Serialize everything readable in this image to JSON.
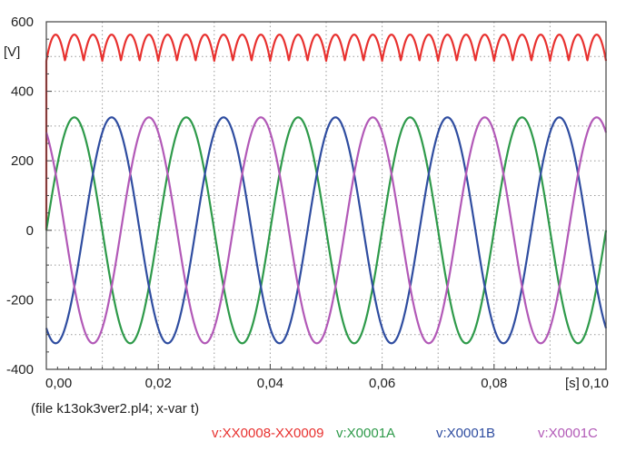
{
  "chart_data": {
    "type": "line",
    "x_unit": "[s]",
    "y_unit": "[V]",
    "xlim": [
      0,
      0.1
    ],
    "ylim": [
      -400,
      600
    ],
    "x_ticks": [
      "0,00",
      "0,02",
      "0,04",
      "0,06",
      "0,08",
      "0,10"
    ],
    "y_ticks": [
      "600",
      "400",
      "200",
      "0",
      "-200",
      "-400"
    ],
    "grid": true,
    "footnote": "(file k13ok3ver2.pl4; x-var t)",
    "legend_position": "bottom-right",
    "series": [
      {
        "name": "v:XX0008-XX0009",
        "color": "#e8312f",
        "shape": "rectified-6-pulse",
        "amplitude": 563,
        "minimum": 487,
        "frequency_hz": 50,
        "ripple_period_s": 0.00333,
        "ripple_peak_times_s": [
          0.0017,
          0.005,
          0.0083,
          0.0117,
          0.015,
          0.0183,
          0.0217,
          0.025,
          0.0283,
          0.0317,
          0.035,
          0.0383,
          0.0417,
          0.045,
          0.0483,
          0.0517,
          0.055,
          0.0583,
          0.0617,
          0.065,
          0.0683,
          0.0717,
          0.075,
          0.0783,
          0.0817,
          0.085,
          0.0883,
          0.0917,
          0.095,
          0.0983
        ]
      },
      {
        "name": "v:X0001A",
        "color": "#2e9a4a",
        "shape": "sine",
        "amplitude": 325,
        "frequency_hz": 50,
        "phase_deg": 0,
        "peak_times_s": [
          0.005,
          0.025,
          0.045,
          0.065,
          0.085
        ],
        "trough_times_s": [
          0.015,
          0.035,
          0.055,
          0.075,
          0.095
        ]
      },
      {
        "name": "v:X0001B",
        "color": "#2f4da0",
        "shape": "sine",
        "amplitude": 325,
        "frequency_hz": 50,
        "phase_deg": -120,
        "peak_times_s": [
          0.0117,
          0.0317,
          0.0517,
          0.0717,
          0.0917
        ],
        "trough_times_s": [
          0.0017,
          0.0217,
          0.0417,
          0.0617,
          0.0817
        ]
      },
      {
        "name": "v:X0001C",
        "color": "#b259b7",
        "shape": "sine",
        "amplitude": 325,
        "frequency_hz": 50,
        "phase_deg": 120,
        "peak_times_s": [
          0.0183,
          0.0383,
          0.0583,
          0.0783,
          0.0983
        ],
        "trough_times_s": [
          0.0083,
          0.0283,
          0.0483,
          0.0683,
          0.0883
        ]
      }
    ]
  }
}
